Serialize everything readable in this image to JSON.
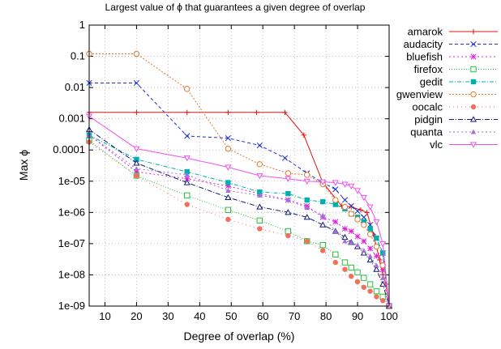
{
  "chart_data": {
    "type": "line",
    "title": "Largest value of ϕ that guarantees a given degree of overlap",
    "xlabel": "Degree of overlap (%)",
    "ylabel": "Max ϕ",
    "xlim": [
      5,
      100
    ],
    "ylim": [
      1e-09,
      1
    ],
    "yscale": "log",
    "x_ticks": [
      10,
      20,
      30,
      40,
      50,
      60,
      70,
      80,
      90,
      100
    ],
    "y_ticks": [
      {
        "value": 1,
        "label": "1"
      },
      {
        "value": 0.1,
        "label": "0.1"
      },
      {
        "value": 0.01,
        "label": "0.01"
      },
      {
        "value": 0.001,
        "label": "0.001"
      },
      {
        "value": 0.0001,
        "label": "0.0001"
      },
      {
        "value": 1e-05,
        "label": "1e-05"
      },
      {
        "value": 1e-06,
        "label": "1e-06"
      },
      {
        "value": 1e-07,
        "label": "1e-07"
      },
      {
        "value": 1e-08,
        "label": "1e-08"
      },
      {
        "value": 1e-09,
        "label": "1e-09"
      }
    ],
    "grid": true,
    "legend_position": "right",
    "series": [
      {
        "name": "amarok",
        "color": "#e8130f",
        "dash": "",
        "marker": "plus",
        "x": [
          5,
          20,
          36,
          49,
          58,
          67,
          73,
          79,
          85,
          88,
          91,
          93,
          95,
          97,
          98,
          99,
          100
        ],
        "y": [
          0.0016,
          0.0016,
          0.0016,
          0.0016,
          0.0016,
          0.0016,
          0.0003,
          9e-06,
          1.6e-06,
          1.5e-06,
          1.2e-06,
          1e-06,
          2e-07,
          3e-08,
          1e-08,
          5e-09,
          1e-09
        ]
      },
      {
        "name": "audacity",
        "color": "#1a2ed6",
        "dash": "4 3",
        "marker": "x",
        "x": [
          5,
          20,
          36,
          49,
          59,
          67,
          74,
          79,
          83,
          86,
          88,
          90,
          92,
          94,
          96,
          98,
          100
        ],
        "y": [
          0.014,
          0.014,
          0.00028,
          0.00024,
          0.00014,
          5.5e-05,
          1.8e-05,
          9e-06,
          5.5e-06,
          2.5e-06,
          1.6e-06,
          1.1e-06,
          7e-07,
          4e-07,
          1.5e-07,
          5e-08,
          1e-09
        ]
      },
      {
        "name": "bluefish",
        "color": "#e020e0",
        "dash": "2 3",
        "marker": "star",
        "x": [
          5,
          20,
          36,
          49,
          59,
          68,
          74,
          79,
          83,
          86,
          88,
          90,
          92,
          94,
          96,
          98,
          100
        ],
        "y": [
          0.0003,
          2e-05,
          1.2e-05,
          7e-06,
          4e-06,
          2.5e-06,
          1.6e-06,
          7e-07,
          5e-07,
          3e-07,
          2.5e-07,
          1.7e-07,
          1.2e-07,
          7e-08,
          4e-08,
          1.5e-08,
          1e-09
        ]
      },
      {
        "name": "firefox",
        "color": "#26c23d",
        "dash": "1 2",
        "marker": "square-open",
        "x": [
          5,
          20,
          36,
          49,
          59,
          68,
          74,
          79,
          83,
          86,
          88,
          90,
          92,
          94,
          96,
          98,
          100
        ],
        "y": [
          0.0002,
          1.5e-05,
          3.5e-06,
          1.2e-06,
          5.5e-07,
          2.5e-07,
          1.2e-07,
          9e-08,
          4.5e-08,
          2.5e-08,
          1.7e-08,
          1.2e-08,
          8e-09,
          5e-09,
          3e-09,
          2e-09,
          1e-09
        ]
      },
      {
        "name": "gedit",
        "color": "#00b0b0",
        "dash": "5 2 1 2",
        "marker": "square-filled",
        "x": [
          5,
          20,
          36,
          49,
          59,
          68,
          74,
          79,
          83,
          86,
          88,
          90,
          92,
          94,
          96,
          98,
          100
        ],
        "y": [
          0.0003,
          5e-05,
          2e-05,
          9e-06,
          4.5e-06,
          4e-06,
          2.5e-06,
          2.2e-06,
          1.8e-06,
          1.3e-06,
          9e-07,
          7e-07,
          5e-07,
          3e-07,
          1.5e-07,
          5e-08,
          1e-09
        ]
      },
      {
        "name": "gwenview",
        "color": "#e07a30",
        "dash": "2 2",
        "marker": "circle-open",
        "x": [
          5,
          20,
          36,
          49,
          59,
          68,
          74,
          79,
          83,
          86,
          88,
          90,
          92,
          94,
          96,
          98,
          100
        ],
        "y": [
          0.12,
          0.12,
          0.009,
          0.00011,
          3.5e-05,
          1.8e-05,
          1.6e-05,
          8e-06,
          2.5e-06,
          1.5e-06,
          9e-07,
          6e-07,
          4e-07,
          2e-07,
          8e-08,
          2e-08,
          1e-09
        ]
      },
      {
        "name": "oocalc",
        "color": "#f07060",
        "dash": "1 4",
        "marker": "circle-filled",
        "x": [
          5,
          20,
          36,
          49,
          59,
          68,
          74,
          79,
          83,
          86,
          88,
          90,
          92,
          94,
          96,
          98,
          100
        ],
        "y": [
          0.00018,
          1.5e-05,
          1.8e-06,
          6e-07,
          3e-07,
          1.8e-07,
          1.2e-07,
          6e-08,
          2.5e-08,
          1.5e-08,
          9e-09,
          6e-09,
          4e-09,
          3e-09,
          2e-09,
          1.5e-09,
          1e-09
        ]
      },
      {
        "name": "pidgin",
        "color": "#101a70",
        "dash": "6 2 1 2",
        "marker": "triangle-open",
        "x": [
          5,
          20,
          36,
          49,
          59,
          68,
          74,
          79,
          83,
          86,
          88,
          90,
          92,
          94,
          96,
          98,
          100
        ],
        "y": [
          0.00045,
          3.8e-05,
          9e-06,
          3e-06,
          1.5e-06,
          1e-06,
          7e-07,
          4e-07,
          2.5e-07,
          1.6e-07,
          1.1e-07,
          8e-08,
          5e-08,
          3e-08,
          1.5e-08,
          5e-09,
          1e-09
        ]
      },
      {
        "name": "quanta",
        "color": "#a070e0",
        "dash": "2 3",
        "marker": "triangle-filled",
        "x": [
          5,
          20,
          36,
          49,
          59,
          68,
          74,
          79,
          83,
          86,
          88,
          90,
          92,
          94,
          96,
          98,
          100
        ],
        "y": [
          0.0003,
          2.5e-05,
          1.6e-05,
          5e-06,
          3.5e-06,
          2.5e-06,
          1.4e-06,
          8e-07,
          2.5e-07,
          1.2e-07,
          1.1e-07,
          9e-08,
          6e-08,
          4e-08,
          2e-08,
          8e-09,
          1e-09
        ]
      },
      {
        "name": "vlc",
        "color": "#f050f0",
        "dash": "",
        "marker": "triangle-down",
        "x": [
          5,
          20,
          36,
          49,
          59,
          68,
          74,
          79,
          83,
          86,
          88,
          90,
          92,
          94,
          96,
          98,
          100
        ],
        "y": [
          0.0012,
          0.00011,
          5.5e-05,
          2.8e-05,
          1.5e-05,
          1.2e-05,
          1e-05,
          9.5e-06,
          9e-06,
          8e-06,
          7e-06,
          5e-06,
          3e-06,
          1.5e-06,
          5e-07,
          1e-07,
          1e-09
        ]
      }
    ]
  }
}
